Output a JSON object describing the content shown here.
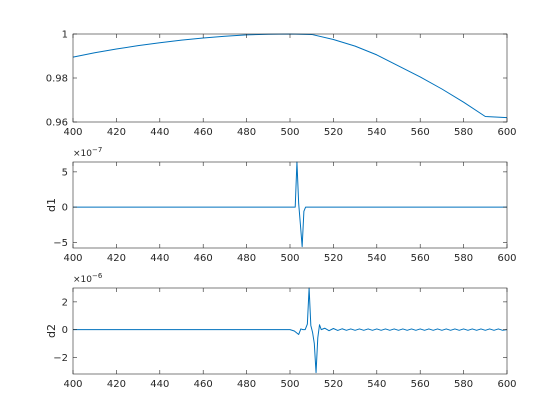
{
  "chart_data": [
    {
      "type": "line",
      "title": "",
      "xlabel": "",
      "ylabel": "",
      "xlim": [
        400,
        600
      ],
      "ylim": [
        0.96,
        1.0
      ],
      "x_ticks": [
        400,
        420,
        440,
        460,
        480,
        500,
        520,
        540,
        560,
        580,
        600
      ],
      "y_ticks": [
        0.96,
        0.98,
        1
      ],
      "y_exponent": null,
      "grid": false,
      "color": "#0072BD",
      "series": [
        {
          "x": [
            400,
            410,
            420,
            430,
            440,
            450,
            460,
            470,
            480,
            490,
            500,
            510,
            520,
            530,
            540,
            550,
            560,
            570,
            580,
            590,
            600
          ],
          "values": [
            0.9895,
            0.9915,
            0.9932,
            0.9947,
            0.996,
            0.9972,
            0.9982,
            0.999,
            0.9996,
            0.9999,
            1.0,
            0.9998,
            0.9975,
            0.9945,
            0.9905,
            0.9855,
            0.9805,
            0.975,
            0.969,
            0.9625,
            0.962
          ]
        }
      ]
    },
    {
      "type": "line",
      "title": "",
      "xlabel": "",
      "ylabel": "d1",
      "xlim": [
        400,
        600
      ],
      "ylim": [
        -5.8,
        6.4
      ],
      "x_ticks": [
        400,
        420,
        440,
        460,
        480,
        500,
        520,
        540,
        560,
        580,
        600
      ],
      "y_ticks": [
        -5,
        0,
        5
      ],
      "y_exponent": -7,
      "grid": false,
      "color": "#0072BD",
      "series": [
        {
          "x": [
            400,
            502.4,
            503.2,
            504.0,
            504.8,
            505.6,
            506.4,
            507.2,
            600
          ],
          "values": [
            0,
            0,
            6.4,
            0.5,
            -2.5,
            -5.6,
            -0.6,
            0,
            0
          ]
        }
      ]
    },
    {
      "type": "line",
      "title": "",
      "xlabel": "",
      "ylabel": "d2",
      "xlim": [
        400,
        600
      ],
      "ylim": [
        -3.2,
        3.0
      ],
      "x_ticks": [
        400,
        420,
        440,
        460,
        480,
        500,
        520,
        540,
        560,
        580,
        600
      ],
      "y_ticks": [
        -2,
        0,
        2
      ],
      "y_exponent": -6,
      "grid": false,
      "color": "#0072BD",
      "series": [
        {
          "x": [
            400,
            500,
            502,
            504,
            505,
            506,
            507,
            508,
            508.8,
            509.6,
            510.4,
            511.2,
            512,
            512.8,
            513.6,
            514.4,
            516,
            518,
            520,
            522,
            524,
            526,
            528,
            530,
            532,
            534,
            536,
            538,
            540,
            542,
            544,
            546,
            548,
            550,
            552,
            554,
            556,
            558,
            560,
            562,
            564,
            566,
            568,
            570,
            572,
            574,
            576,
            578,
            580,
            582,
            584,
            586,
            588,
            590,
            592,
            594,
            596,
            598,
            600
          ],
          "values": [
            0,
            0,
            -0.1,
            -0.35,
            0.05,
            0,
            0,
            0.4,
            3.0,
            0.3,
            -0.2,
            -1.0,
            -3.1,
            -0.6,
            0.35,
            0,
            0.1,
            -0.08,
            0.08,
            -0.06,
            0.06,
            -0.05,
            0.05,
            -0.05,
            0.05,
            -0.05,
            0.05,
            -0.05,
            0.05,
            -0.05,
            0.05,
            -0.05,
            0.05,
            -0.05,
            0.05,
            -0.05,
            0.05,
            -0.05,
            0.05,
            -0.05,
            0.05,
            -0.05,
            0.05,
            -0.05,
            0.05,
            -0.05,
            0.05,
            -0.05,
            0.05,
            -0.05,
            0.05,
            -0.05,
            0.05,
            -0.05,
            0.05,
            -0.05,
            0.05,
            -0.05,
            0
          ]
        }
      ]
    }
  ]
}
